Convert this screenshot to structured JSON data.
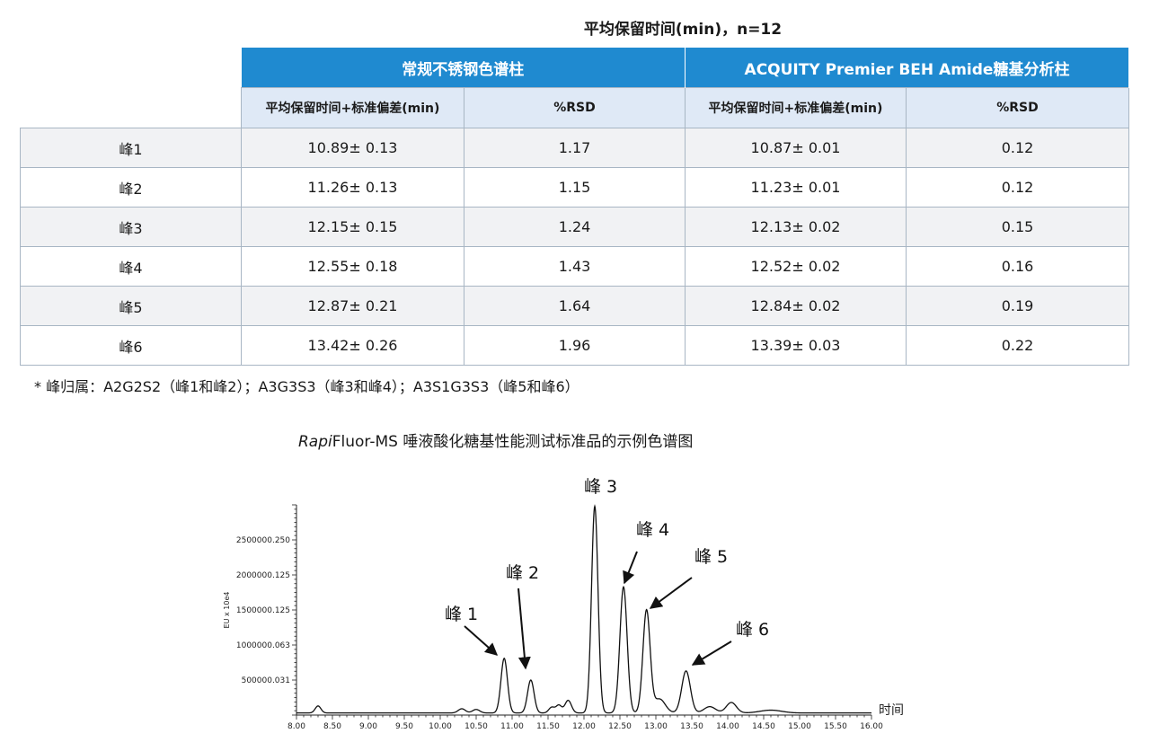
{
  "table_title": "平均保留时间(min)，n=12",
  "table": {
    "group_headers": [
      "常规不锈钢色谱柱",
      "ACQUITY Premier BEH Amide糖基分析柱"
    ],
    "sub_headers": [
      "平均保留时间+标准偏差(min)",
      "%RSD",
      "平均保留时间+标准偏差(min)",
      "%RSD"
    ],
    "rows": [
      {
        "label": "峰1",
        "steel_rt": "10.89± 0.13",
        "steel_rsd": "1.17",
        "premier_rt": "10.87± 0.01",
        "premier_rsd": "0.12"
      },
      {
        "label": "峰2",
        "steel_rt": "11.26± 0.13",
        "steel_rsd": "1.15",
        "premier_rt": "11.23± 0.01",
        "premier_rsd": "0.12"
      },
      {
        "label": "峰3",
        "steel_rt": "12.15± 0.15",
        "steel_rsd": "1.24",
        "premier_rt": "12.13± 0.02",
        "premier_rsd": "0.15"
      },
      {
        "label": "峰4",
        "steel_rt": "12.55± 0.18",
        "steel_rsd": "1.43",
        "premier_rt": "12.52± 0.02",
        "premier_rsd": "0.16"
      },
      {
        "label": "峰5",
        "steel_rt": "12.87± 0.21",
        "steel_rsd": "1.64",
        "premier_rt": "12.84± 0.02",
        "premier_rsd": "0.19"
      },
      {
        "label": "峰6",
        "steel_rt": "13.42± 0.26",
        "steel_rsd": "1.96",
        "premier_rt": "13.39± 0.03",
        "premier_rsd": "0.22"
      }
    ]
  },
  "footnote": "* 峰归属：A2G2S2（峰1和峰2）；A3G3S3（峰3和峰4）；A3S1G3S3（峰5和峰6）",
  "chart_title_italic": "Rapi",
  "chart_title_rest": "Fluor-MS 唾液酸化糖基性能测试标准品的示例色谱图",
  "chart_data": {
    "type": "line",
    "xlabel": "时间",
    "ylabel": "EU x 10e4",
    "xlim": [
      8.0,
      16.0
    ],
    "ylim": [
      0,
      3000000
    ],
    "x_ticks": [
      "8.00",
      "8.50",
      "9.00",
      "9.50",
      "10.00",
      "10.50",
      "11.00",
      "11.50",
      "12.00",
      "12.50",
      "13.00",
      "13.50",
      "14.00",
      "14.50",
      "15.00",
      "15.50",
      "16.00"
    ],
    "y_ticks": [
      {
        "value": 500000.031,
        "label": "500000.031"
      },
      {
        "value": 1000000.063,
        "label": "1000000.063"
      },
      {
        "value": 1500000.125,
        "label": "1500000.125"
      },
      {
        "value": 2000000.125,
        "label": "2000000.125"
      },
      {
        "value": 2500000.25,
        "label": "2500000.250"
      }
    ],
    "baseline": 30000,
    "peaks": [
      {
        "x": 8.3,
        "height": 100000,
        "width": 0.04
      },
      {
        "x": 10.3,
        "height": 60000,
        "width": 0.05
      },
      {
        "x": 10.5,
        "height": 50000,
        "width": 0.05
      },
      {
        "x": 10.89,
        "height": 780000,
        "width": 0.045
      },
      {
        "x": 11.26,
        "height": 470000,
        "width": 0.045
      },
      {
        "x": 11.55,
        "height": 80000,
        "width": 0.04
      },
      {
        "x": 11.65,
        "height": 110000,
        "width": 0.04
      },
      {
        "x": 11.78,
        "height": 180000,
        "width": 0.045
      },
      {
        "x": 12.15,
        "height": 2950000,
        "width": 0.045
      },
      {
        "x": 12.55,
        "height": 1800000,
        "width": 0.05
      },
      {
        "x": 12.87,
        "height": 1460000,
        "width": 0.05
      },
      {
        "x": 13.05,
        "height": 200000,
        "width": 0.08
      },
      {
        "x": 13.42,
        "height": 600000,
        "width": 0.06
      },
      {
        "x": 13.75,
        "height": 90000,
        "width": 0.08
      },
      {
        "x": 14.05,
        "height": 150000,
        "width": 0.07
      },
      {
        "x": 14.6,
        "height": 40000,
        "width": 0.15
      }
    ],
    "annotations": [
      {
        "label": "峰 1",
        "peak_x": 10.89
      },
      {
        "label": "峰 2",
        "peak_x": 11.26
      },
      {
        "label": "峰 3",
        "peak_x": 12.15
      },
      {
        "label": "峰 4",
        "peak_x": 12.55
      },
      {
        "label": "峰 5",
        "peak_x": 12.87
      },
      {
        "label": "峰 6",
        "peak_x": 13.42
      }
    ],
    "grid": false
  }
}
